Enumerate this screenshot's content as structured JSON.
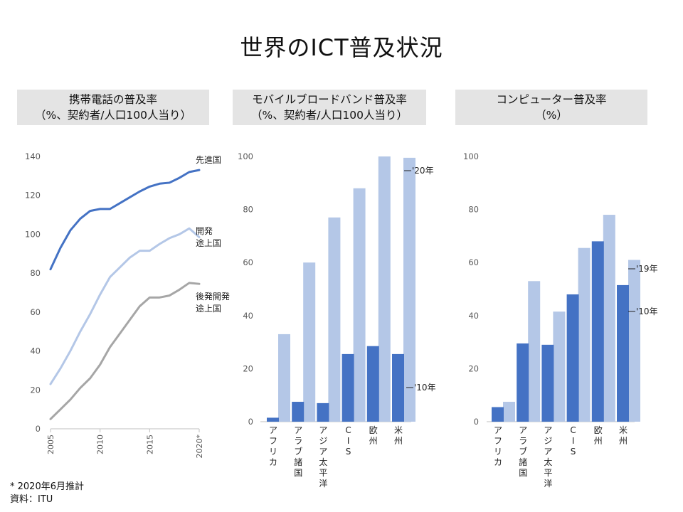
{
  "page": {
    "title": "世界のICT普及状況",
    "note1": "* 2020年6月推計",
    "note2": "資料：ITU"
  },
  "colors": {
    "dark_blue": "#4472c4",
    "light_blue": "#b4c7e7",
    "gray": "#a6a6a6",
    "grid": "#d9d9d9"
  },
  "chart_data": [
    {
      "type": "line",
      "header_lines": [
        "携帯電話の普及率",
        "（%、契約者/人口100人当り）"
      ],
      "x": [
        2005,
        2006,
        2007,
        2008,
        2009,
        2010,
        2011,
        2012,
        2013,
        2014,
        2015,
        2016,
        2017,
        2018,
        2019,
        2020
      ],
      "x_tick_labels": [
        "2005",
        "2010",
        "2015",
        "2020*"
      ],
      "ylim": [
        0,
        140
      ],
      "yticks": [
        0,
        20,
        40,
        60,
        80,
        100,
        120,
        140
      ],
      "grid": false,
      "series": [
        {
          "name": "先進国",
          "label_lines": [
            "先進国"
          ],
          "color": "#4472c4",
          "values": [
            82,
            93,
            102,
            108,
            112,
            113,
            113,
            116,
            119,
            122,
            124.5,
            126,
            126.5,
            129,
            132,
            133
          ]
        },
        {
          "name": "開発途上国",
          "label_lines": [
            "開発",
            "途上国"
          ],
          "color": "#b4c7e7",
          "values": [
            23,
            31,
            40,
            50,
            59,
            69,
            78,
            83,
            88,
            91.5,
            91.5,
            95,
            98,
            100,
            103,
            98.5
          ]
        },
        {
          "name": "後発開発途上国",
          "label_lines": [
            "後発開発",
            "途上国"
          ],
          "color": "#a6a6a6",
          "values": [
            5,
            10,
            15,
            21,
            26,
            33,
            42,
            49,
            56,
            63,
            67.5,
            67.5,
            68.5,
            71.5,
            75,
            74.5
          ]
        }
      ]
    },
    {
      "type": "bar",
      "header_lines": [
        "モバイルブロードバンド普及率",
        "（%、契約者/人口100人当り）"
      ],
      "categories": [
        "アフリカ",
        "アラブ諸国",
        "アジア太平洋",
        "CIS",
        "欧州",
        "米州"
      ],
      "ylim": [
        0,
        100
      ],
      "yticks": [
        0,
        20,
        40,
        60,
        80,
        100
      ],
      "grid": false,
      "series": [
        {
          "name": "'10年",
          "label": "'10年",
          "color": "#4472c4",
          "values": [
            1.5,
            7.5,
            7,
            25.5,
            28.5,
            25.5
          ]
        },
        {
          "name": "'20年",
          "label": "'20年",
          "color": "#b4c7e7",
          "values": [
            33,
            60,
            77,
            88,
            100,
            99.5
          ]
        }
      ]
    },
    {
      "type": "bar",
      "header_lines": [
        "コンピューター普及率",
        "（%）"
      ],
      "categories": [
        "アフリカ",
        "アラブ諸国",
        "アジア太平洋",
        "CIS",
        "欧州",
        "米州"
      ],
      "ylim": [
        0,
        100
      ],
      "yticks": [
        0,
        20,
        40,
        60,
        80,
        100
      ],
      "grid": false,
      "series": [
        {
          "name": "'10年",
          "label": "'10年",
          "color": "#4472c4",
          "values": [
            5.5,
            29.5,
            29,
            48,
            68,
            51.5
          ]
        },
        {
          "name": "'19年",
          "label": "'19年",
          "color": "#b4c7e7",
          "values": [
            7.5,
            53,
            41.5,
            65.5,
            78,
            61
          ]
        }
      ]
    }
  ]
}
